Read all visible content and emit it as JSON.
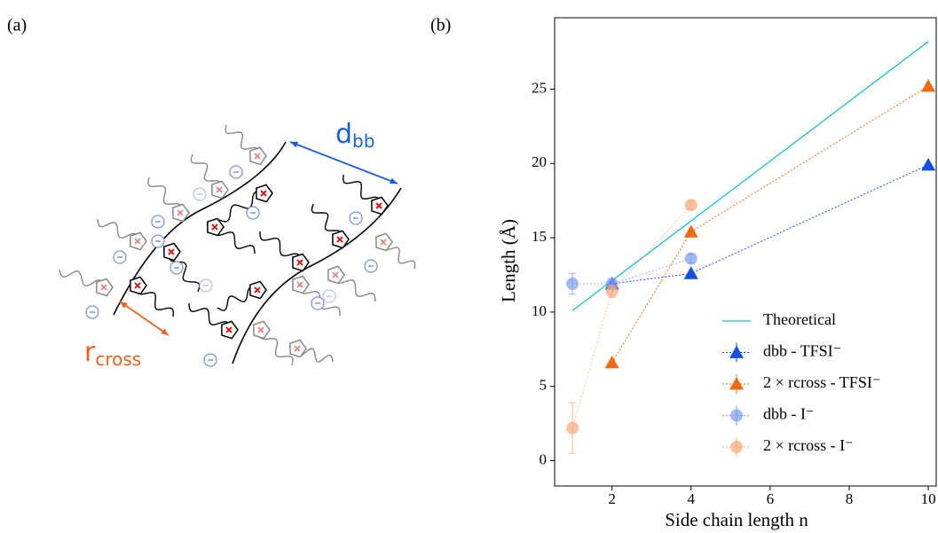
{
  "panels": [
    "(a)",
    "(b)"
  ],
  "diagram": {
    "labels": [
      {
        "main": "d",
        "sub": "bb",
        "color": "#1a5fe0"
      },
      {
        "main": "r",
        "sub": "cross",
        "color": "#e8641e"
      }
    ]
  },
  "chart_data": {
    "type": "line",
    "xlabel": "Side chain length n",
    "ylabel": "Length (Å)",
    "xlim": [
      0.55,
      10.2
    ],
    "ylim": [
      -1.7,
      29.8
    ],
    "xticks": [
      2,
      4,
      6,
      8,
      10
    ],
    "yticks": [
      0,
      5,
      10,
      15,
      20,
      25
    ],
    "legend": "lower right",
    "series": [
      {
        "name": "Theoretical",
        "color": "#17becf",
        "marker": "none",
        "x": [
          1,
          10
        ],
        "values": [
          10.1,
          28.2
        ]
      },
      {
        "name": "dbb - TFSI⁻",
        "color": "#1450e6",
        "marker": "triangle",
        "x": [
          2,
          4,
          10
        ],
        "values": [
          11.9,
          12.6,
          19.9
        ]
      },
      {
        "name": "2 × rcross - TFSI⁻",
        "color": "#f26b12",
        "marker": "triangle",
        "x": [
          2,
          4,
          10
        ],
        "values": [
          6.6,
          15.4,
          25.2
        ]
      },
      {
        "name": "dbb - I⁻",
        "color": "#7a9cf0",
        "marker": "circle",
        "x": [
          1,
          2,
          4
        ],
        "values": [
          11.9,
          11.9,
          13.6
        ],
        "errors": [
          0.7,
          0.3,
          0.3
        ]
      },
      {
        "name": "2 × rcross - I⁻",
        "color": "#f8a779",
        "marker": "circle",
        "x": [
          1,
          2,
          4
        ],
        "values": [
          2.2,
          11.4,
          17.2
        ],
        "errors": [
          1.7,
          0.4,
          0.3
        ]
      }
    ]
  }
}
